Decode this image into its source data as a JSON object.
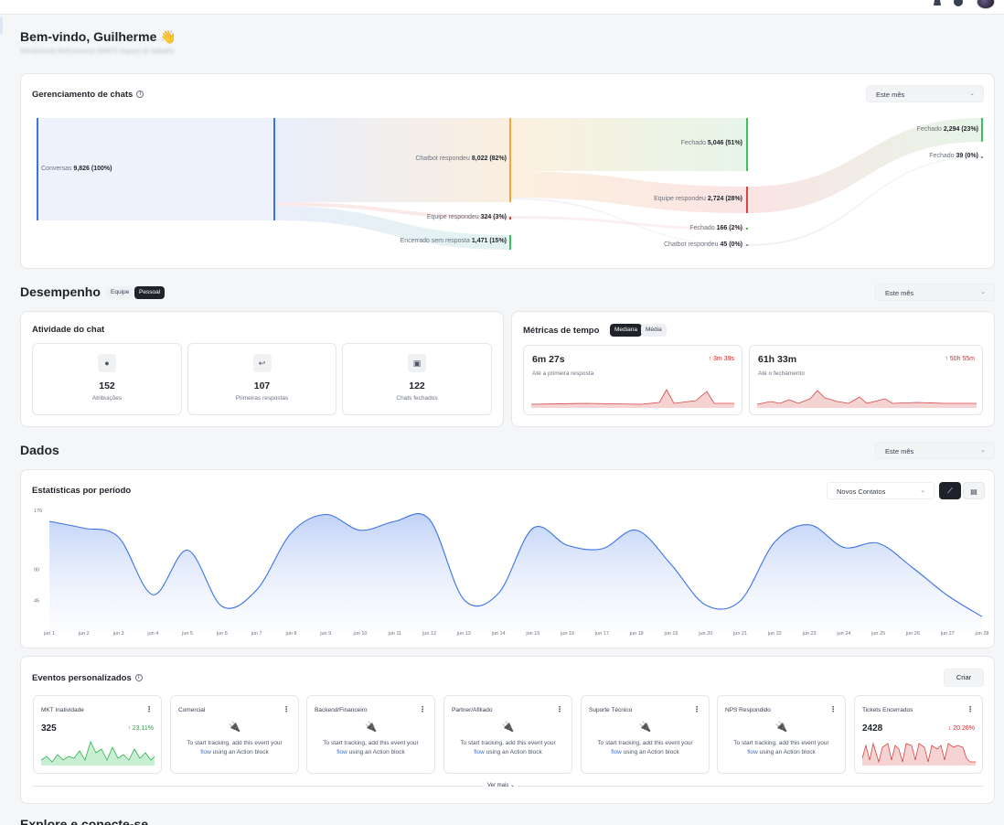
{
  "header": {
    "welcome": "Bem-vindo, Guilherme 👋",
    "subline": "Atendimento BotConversa 309875 espaço de trabalho"
  },
  "chats": {
    "title": "Gerenciamento de chats",
    "filter": "Este mês",
    "nodes": [
      {
        "label": "Conversas",
        "value": "9,826 (100%)"
      },
      {
        "label": "Chatbot respondeu",
        "value": "8,022 (82%)"
      },
      {
        "label": "Equipe respondeu",
        "value": "324 (3%)"
      },
      {
        "label": "Encerrado sem resposta",
        "value": "1,471 (15%)"
      },
      {
        "label": "Fechado",
        "value": "5,046 (51%)"
      },
      {
        "label": "Equipe respondeu",
        "value": "2,724 (28%)"
      },
      {
        "label": "Fechado",
        "value": "166 (2%)"
      },
      {
        "label": "Chatbot respondeu",
        "value": "45 (0%)"
      },
      {
        "label": "Fechado",
        "value": "2,294 (23%)"
      },
      {
        "label": "Fechado",
        "value": "39 (0%)"
      }
    ]
  },
  "desempenho": {
    "title": "Desempenho",
    "toggle": [
      "Equipe",
      "Pessoal"
    ],
    "filter": "Este mês",
    "atividade": {
      "title": "Atividade do chat",
      "stats": [
        {
          "icon": "person-icon",
          "value": "152",
          "label": "Atribuições"
        },
        {
          "icon": "reply-icon",
          "value": "107",
          "label": "Primeiras respostas"
        },
        {
          "icon": "archive-icon",
          "value": "122",
          "label": "Chats fechados"
        }
      ]
    },
    "metricas": {
      "title": "Métricas de tempo",
      "toggle": [
        "Mediana",
        "Média"
      ],
      "items": [
        {
          "value": "6m 27s",
          "label": "Até a primeira resposta",
          "delta": "↑ 3m 39s"
        },
        {
          "value": "61h 33m",
          "label": "Até o fechamento",
          "delta": "↑ 50h 55m"
        }
      ]
    }
  },
  "dados": {
    "title": "Dados",
    "filter": "Este mês",
    "stats_title": "Estatísticas por período",
    "metric_select": "Novos Contatos",
    "chart_data": {
      "type": "area",
      "yticks": [
        176,
        90,
        45
      ],
      "x": [
        "jun 1",
        "jun 2",
        "jun 3",
        "jun 4",
        "jun 5",
        "jun 6",
        "jun 7",
        "jun 8",
        "jun 9",
        "jun 10",
        "jun 11",
        "jun 12",
        "jun 13",
        "jun 14",
        "jun 15",
        "jun 16",
        "jun 17",
        "jun 18",
        "jun 19",
        "jun 20",
        "jun 21",
        "jun 22",
        "jun 23",
        "jun 24",
        "jun 25",
        "jun 26",
        "jun 27",
        "jun 28"
      ],
      "values": [
        160,
        150,
        137,
        53,
        118,
        36,
        60,
        143,
        170,
        147,
        160,
        163,
        46,
        55,
        150,
        125,
        120,
        147,
        97,
        38,
        44,
        130,
        155,
        122,
        128,
        92,
        52,
        21
      ],
      "ylim": [
        0,
        176
      ],
      "color": "#3b72e6"
    }
  },
  "eventos": {
    "title": "Eventos personalizados",
    "create": "Criar",
    "more": "Ver mais",
    "items": [
      {
        "name": "MKT Inatividade",
        "value": "325",
        "delta": "↑ 23.11%",
        "trend": "up"
      },
      {
        "name": "Comercial",
        "hint": [
          "To start tracking, add this event your",
          "flow",
          "using an Action block"
        ]
      },
      {
        "name": "Backend/Financeiro",
        "hint": [
          "To start tracking, add this event your",
          "flow",
          "using an Action block"
        ]
      },
      {
        "name": "Partner/Afiliado",
        "hint": [
          "To start tracking, add this event your",
          "flow",
          "using an Action block"
        ]
      },
      {
        "name": "Suporte Técnico",
        "hint": [
          "To start tracking, add this event your",
          "flow",
          "using an Action block"
        ]
      },
      {
        "name": "NPS Respondido",
        "hint": [
          "To start tracking, add this event your",
          "flow",
          "using an Action block"
        ]
      },
      {
        "name": "Tickets Encerrados",
        "value": "2428",
        "delta": "↓ 20.26%",
        "trend": "down"
      }
    ]
  },
  "footer": {
    "partial_title": "Explore e conecte-se"
  }
}
